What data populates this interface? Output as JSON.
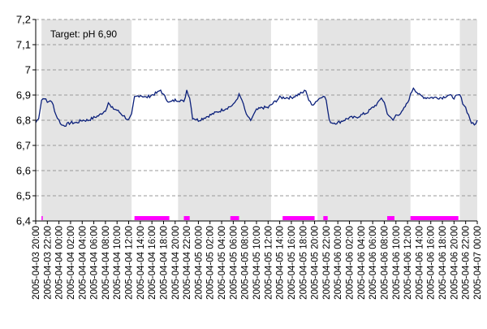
{
  "chart_data": {
    "type": "line",
    "annotation": "Target: pH 6,90",
    "ylim": [
      6.4,
      7.2
    ],
    "y_ticks": [
      "6,4",
      "6,5",
      "6,6",
      "6,7",
      "6,8",
      "6,9",
      "7",
      "7,1",
      "7,2"
    ],
    "x_tick_labels": [
      "2005-04-03 20:00",
      "2005-04-03 22:00",
      "2005-04-04 00:00",
      "2005-04-04 02:00",
      "2005-04-04 04:00",
      "2005-04-04 06:00",
      "2005-04-04 08:00",
      "2005-04-04 10:00",
      "2005-04-04 12:00",
      "2005-04-04 14:00",
      "2005-04-04 16:00",
      "2005-04-04 18:00",
      "2005-04-04 20:00",
      "2005-04-04 22:00",
      "2005-04-05 00:00",
      "2005-04-05 02:00",
      "2005-04-05 04:00",
      "2005-04-05 06:00",
      "2005-04-05 08:00",
      "2005-04-05 10:00",
      "2005-04-05 12:00",
      "2005-04-05 14:00",
      "2005-04-05 16:00",
      "2005-04-05 18:00",
      "2005-04-05 20:00",
      "2005-04-05 22:00",
      "2005-04-06 00:00",
      "2005-04-06 02:00",
      "2005-04-06 04:00",
      "2005-04-06 06:00",
      "2005-04-06 08:00",
      "2005-04-06 10:00",
      "2005-04-06 12:00",
      "2005-04-06 14:00",
      "2005-04-06 16:00",
      "2005-04-06 18:00",
      "2005-04-06 20:00",
      "2005-04-06 22:00",
      "2005-04-07 00:00"
    ],
    "x_range": [
      "2005-04-03 20:00",
      "2005-04-07 00:00"
    ],
    "grid": "horizontal dashed",
    "night_bands": [
      [
        "2005-04-03 21:00",
        "2005-04-04 12:30"
      ],
      [
        "2005-04-04 20:30",
        "2005-04-05 12:30"
      ],
      [
        "2005-04-05 20:30",
        "2005-04-06 12:30"
      ],
      [
        "2005-04-06 21:00",
        "2005-04-07 00:00"
      ]
    ],
    "dosing_intervals": [
      [
        "2005-04-03 21:00",
        "2005-04-03 21:10"
      ],
      [
        "2005-04-04 13:00",
        "2005-04-04 19:00"
      ],
      [
        "2005-04-04 21:30",
        "2005-04-04 22:30"
      ],
      [
        "2005-04-05 05:30",
        "2005-04-05 07:00"
      ],
      [
        "2005-04-05 14:30",
        "2005-04-05 20:00"
      ],
      [
        "2005-04-05 21:30",
        "2005-04-05 22:15"
      ],
      [
        "2005-04-06 08:30",
        "2005-04-06 09:45"
      ],
      [
        "2005-04-06 12:30",
        "2005-04-06 20:45"
      ]
    ],
    "series": [
      {
        "color": "#0a1f7a",
        "points": [
          [
            "2005-04-03 20:00",
            6.79
          ],
          [
            "2005-04-03 20:30",
            6.81
          ],
          [
            "2005-04-03 21:00",
            6.88
          ],
          [
            "2005-04-03 21:30",
            6.89
          ],
          [
            "2005-04-03 22:00",
            6.87
          ],
          [
            "2005-04-03 22:30",
            6.88
          ],
          [
            "2005-04-03 23:00",
            6.86
          ],
          [
            "2005-04-03 23:30",
            6.82
          ],
          [
            "2005-04-04 00:00",
            6.8
          ],
          [
            "2005-04-04 00:30",
            6.78
          ],
          [
            "2005-04-04 01:00",
            6.78
          ],
          [
            "2005-04-04 02:00",
            6.79
          ],
          [
            "2005-04-04 03:00",
            6.79
          ],
          [
            "2005-04-04 04:00",
            6.8
          ],
          [
            "2005-04-04 05:00",
            6.8
          ],
          [
            "2005-04-04 06:00",
            6.81
          ],
          [
            "2005-04-04 07:00",
            6.82
          ],
          [
            "2005-04-04 08:00",
            6.84
          ],
          [
            "2005-04-04 08:30",
            6.87
          ],
          [
            "2005-04-04 09:00",
            6.85
          ],
          [
            "2005-04-04 10:00",
            6.84
          ],
          [
            "2005-04-04 11:00",
            6.82
          ],
          [
            "2005-04-04 11:30",
            6.81
          ],
          [
            "2005-04-04 12:00",
            6.8
          ],
          [
            "2005-04-04 12:30",
            6.82
          ],
          [
            "2005-04-04 13:00",
            6.89
          ],
          [
            "2005-04-04 14:00",
            6.9
          ],
          [
            "2005-04-04 15:00",
            6.89
          ],
          [
            "2005-04-04 16:00",
            6.9
          ],
          [
            "2005-04-04 17:00",
            6.91
          ],
          [
            "2005-04-04 17:30",
            6.92
          ],
          [
            "2005-04-04 18:00",
            6.9
          ],
          [
            "2005-04-04 19:00",
            6.87
          ],
          [
            "2005-04-04 20:00",
            6.88
          ],
          [
            "2005-04-04 21:00",
            6.88
          ],
          [
            "2005-04-04 21:30",
            6.87
          ],
          [
            "2005-04-04 22:00",
            6.92
          ],
          [
            "2005-04-04 22:30",
            6.89
          ],
          [
            "2005-04-04 23:00",
            6.81
          ],
          [
            "2005-04-05 00:00",
            6.8
          ],
          [
            "2005-04-05 01:00",
            6.81
          ],
          [
            "2005-04-05 02:00",
            6.82
          ],
          [
            "2005-04-05 03:00",
            6.83
          ],
          [
            "2005-04-05 04:00",
            6.84
          ],
          [
            "2005-04-05 05:00",
            6.85
          ],
          [
            "2005-04-05 06:00",
            6.86
          ],
          [
            "2005-04-05 06:30",
            6.88
          ],
          [
            "2005-04-05 07:00",
            6.9
          ],
          [
            "2005-04-05 07:30",
            6.88
          ],
          [
            "2005-04-05 08:00",
            6.84
          ],
          [
            "2005-04-05 08:30",
            6.81
          ],
          [
            "2005-04-05 09:00",
            6.8
          ],
          [
            "2005-04-05 09:30",
            6.82
          ],
          [
            "2005-04-05 10:00",
            6.84
          ],
          [
            "2005-04-05 11:00",
            6.85
          ],
          [
            "2005-04-05 12:00",
            6.85
          ],
          [
            "2005-04-05 13:00",
            6.87
          ],
          [
            "2005-04-05 14:00",
            6.89
          ],
          [
            "2005-04-05 15:00",
            6.89
          ],
          [
            "2005-04-05 16:00",
            6.89
          ],
          [
            "2005-04-05 17:00",
            6.9
          ],
          [
            "2005-04-05 18:00",
            6.91
          ],
          [
            "2005-04-05 18:30",
            6.92
          ],
          [
            "2005-04-05 19:00",
            6.88
          ],
          [
            "2005-04-05 19:30",
            6.86
          ],
          [
            "2005-04-05 20:00",
            6.87
          ],
          [
            "2005-04-05 21:00",
            6.89
          ],
          [
            "2005-04-05 21:30",
            6.9
          ],
          [
            "2005-04-05 22:00",
            6.88
          ],
          [
            "2005-04-05 22:30",
            6.8
          ],
          [
            "2005-04-05 23:00",
            6.79
          ],
          [
            "2005-04-06 00:00",
            6.79
          ],
          [
            "2005-04-06 01:00",
            6.8
          ],
          [
            "2005-04-06 02:00",
            6.81
          ],
          [
            "2005-04-06 03:00",
            6.81
          ],
          [
            "2005-04-06 04:00",
            6.82
          ],
          [
            "2005-04-06 05:00",
            6.83
          ],
          [
            "2005-04-06 06:00",
            6.85
          ],
          [
            "2005-04-06 07:00",
            6.87
          ],
          [
            "2005-04-06 07:30",
            6.89
          ],
          [
            "2005-04-06 08:00",
            6.87
          ],
          [
            "2005-04-06 08:30",
            6.83
          ],
          [
            "2005-04-06 09:00",
            6.81
          ],
          [
            "2005-04-06 09:30",
            6.8
          ],
          [
            "2005-04-06 10:00",
            6.82
          ],
          [
            "2005-04-06 11:00",
            6.83
          ],
          [
            "2005-04-06 12:00",
            6.87
          ],
          [
            "2005-04-06 12:30",
            6.9
          ],
          [
            "2005-04-06 13:00",
            6.93
          ],
          [
            "2005-04-06 14:00",
            6.9
          ],
          [
            "2005-04-06 15:00",
            6.89
          ],
          [
            "2005-04-06 16:00",
            6.89
          ],
          [
            "2005-04-06 17:00",
            6.89
          ],
          [
            "2005-04-06 18:00",
            6.89
          ],
          [
            "2005-04-06 19:00",
            6.9
          ],
          [
            "2005-04-06 20:00",
            6.89
          ],
          [
            "2005-04-06 21:00",
            6.9
          ],
          [
            "2005-04-06 21:30",
            6.87
          ],
          [
            "2005-04-06 22:00",
            6.85
          ],
          [
            "2005-04-06 22:30",
            6.82
          ],
          [
            "2005-04-06 23:00",
            6.79
          ],
          [
            "2005-04-06 23:30",
            6.78
          ],
          [
            "2005-04-07 00:00",
            6.8
          ]
        ]
      }
    ]
  },
  "colors": {
    "line": "#0a1f7a",
    "night_band": "#e4e4e4",
    "dosing": "#ff00ff",
    "grid": "#9a9a9a",
    "axis": "#000000"
  }
}
